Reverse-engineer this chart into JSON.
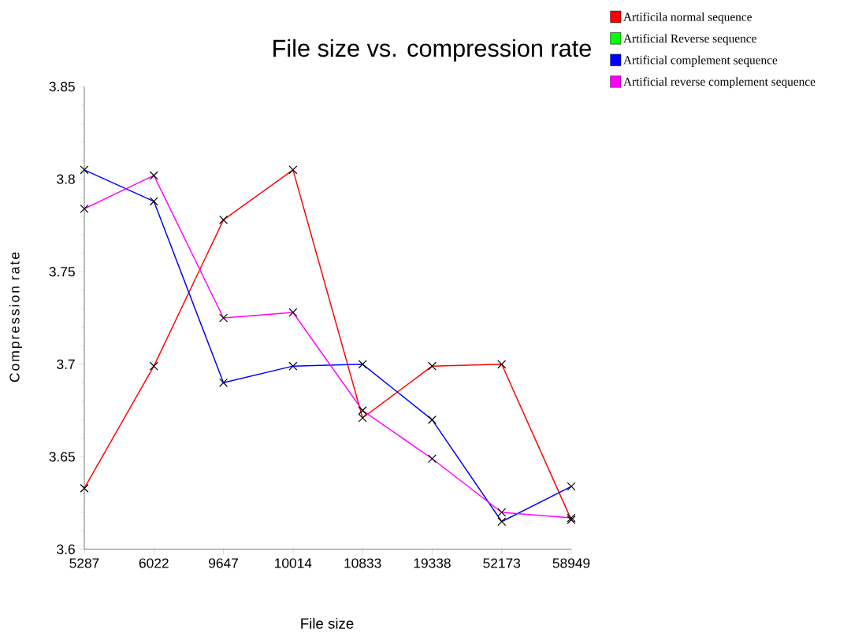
{
  "chart_data": {
    "type": "line",
    "title": "File size vs. compression rate",
    "xlabel": "File size",
    "ylabel": "Compression rate",
    "categories": [
      "5287",
      "6022",
      "9647",
      "10014",
      "10833",
      "19338",
      "52173",
      "58949"
    ],
    "series": [
      {
        "name": "Artificila normal sequence",
        "color": "#ff0000",
        "values": [
          3.633,
          3.699,
          3.778,
          3.805,
          3.671,
          3.699,
          3.7,
          3.616
        ]
      },
      {
        "name": "Artificial Reverse sequence",
        "color": "#00ff00",
        "values": [
          null,
          null,
          null,
          null,
          null,
          null,
          null,
          null
        ]
      },
      {
        "name": "Artificial complement sequence",
        "color": "#0000ff",
        "values": [
          3.805,
          3.788,
          3.69,
          3.699,
          3.7,
          3.67,
          3.615,
          3.634
        ]
      },
      {
        "name": "Artificial reverse complement sequence",
        "color": "#ff00ff",
        "values": [
          3.784,
          3.802,
          3.725,
          3.728,
          3.675,
          3.649,
          3.62,
          3.617
        ]
      }
    ],
    "ylim": [
      3.6,
      3.85
    ],
    "yticks": [
      3.6,
      3.65,
      3.7,
      3.75,
      3.8,
      3.85
    ],
    "legend": "top right",
    "marker": "cross",
    "line_style": "solid"
  }
}
